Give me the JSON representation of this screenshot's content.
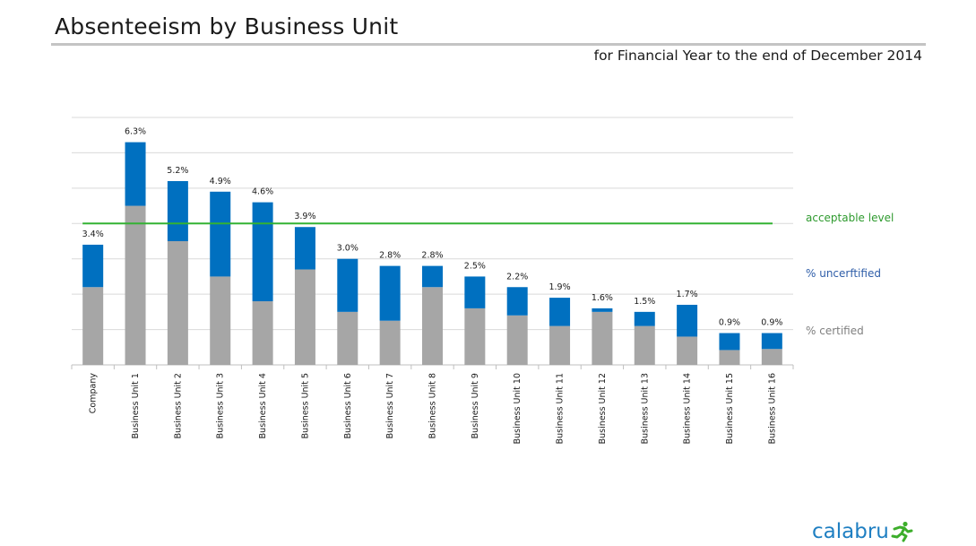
{
  "header": {
    "title": "Absenteeism by Business Unit",
    "subtitle": "for Financial Year to the end of December 2014"
  },
  "legend": {
    "acceptable": "acceptable level",
    "uncertified": "% uncerftified",
    "certified": "% certified"
  },
  "logo": {
    "text": "calabru"
  },
  "colors": {
    "certified": "#a6a6a6",
    "uncertified": "#0070c0",
    "acceptable": "#33b233",
    "gridline": "#d9d9d9",
    "legend_acceptable_text": "#2e9a2e",
    "legend_uncertified_text": "#2e5da8",
    "legend_certified_text": "#7f7f7f"
  },
  "chart_data": {
    "type": "bar",
    "stacked": true,
    "categories": [
      "Company",
      "Business Unit 1",
      "Business Unit 2",
      "Business Unit 3",
      "Business Unit 4",
      "Business Unit 5",
      "Business Unit 6",
      "Business Unit 7",
      "Business Unit 8",
      "Business Unit 9",
      "Business Unit 10",
      "Business Unit 11",
      "Business Unit 12",
      "Business Unit 13",
      "Business Unit 14",
      "Business Unit 15",
      "Business Unit 16"
    ],
    "series": [
      {
        "name": "% certified",
        "values": [
          2.2,
          4.5,
          3.5,
          2.5,
          1.8,
          2.7,
          1.5,
          1.25,
          2.2,
          1.6,
          1.4,
          1.1,
          1.5,
          1.1,
          0.8,
          0.42,
          0.45
        ]
      },
      {
        "name": "% uncerftified",
        "values": [
          1.2,
          1.8,
          1.7,
          2.4,
          2.8,
          1.2,
          1.5,
          1.55,
          0.6,
          0.9,
          0.8,
          0.8,
          0.1,
          0.4,
          0.9,
          0.48,
          0.45
        ]
      }
    ],
    "totals": [
      3.4,
      6.3,
      5.2,
      4.9,
      4.6,
      3.9,
      3.0,
      2.8,
      2.8,
      2.5,
      2.2,
      1.9,
      1.6,
      1.5,
      1.7,
      0.9,
      0.9
    ],
    "total_labels": [
      "3.4%",
      "6.3%",
      "5.2%",
      "4.9%",
      "4.6%",
      "3.9%",
      "3.0%",
      "2.8%",
      "2.8%",
      "2.5%",
      "2.2%",
      "1.9%",
      "1.6%",
      "1.5%",
      "1.7%",
      "0.9%",
      "0.9%"
    ],
    "acceptable_level": 4.0,
    "ylim": [
      0,
      7
    ],
    "grid": true,
    "y_tick_labels_shown": false,
    "legend_position": "right"
  }
}
